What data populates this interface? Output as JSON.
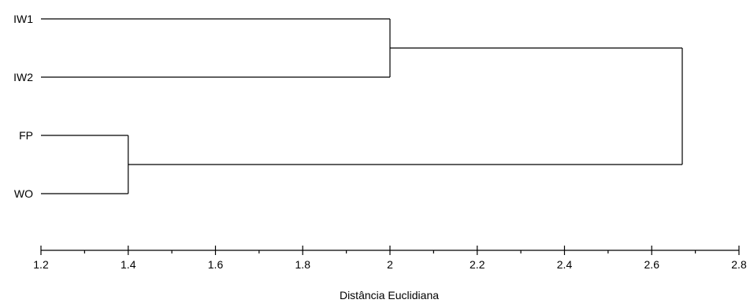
{
  "chart_data": {
    "type": "dendrogram",
    "orientation": "horizontal",
    "leaves": [
      "IW1",
      "IW2",
      "FP",
      "WO"
    ],
    "merges": [
      {
        "left": "FP",
        "right": "WO",
        "height": 1.4
      },
      {
        "left": "IW1",
        "right": "IW2",
        "height": 2.0
      },
      {
        "left": [
          "IW1",
          "IW2"
        ],
        "right": [
          "FP",
          "WO"
        ],
        "height": 2.67
      }
    ],
    "leaf_baseline": 1.2,
    "xlim": [
      1.2,
      2.8
    ],
    "xticks": [
      "1.2",
      "1.4",
      "1.6",
      "1.8",
      "2",
      "2.2",
      "2.4",
      "2.6",
      "2.8"
    ],
    "xlabel": "Distância Euclidiana",
    "ylabel": "",
    "title": "",
    "grid": false,
    "colors": {
      "line": "#000000",
      "background": "#ffffff"
    }
  }
}
